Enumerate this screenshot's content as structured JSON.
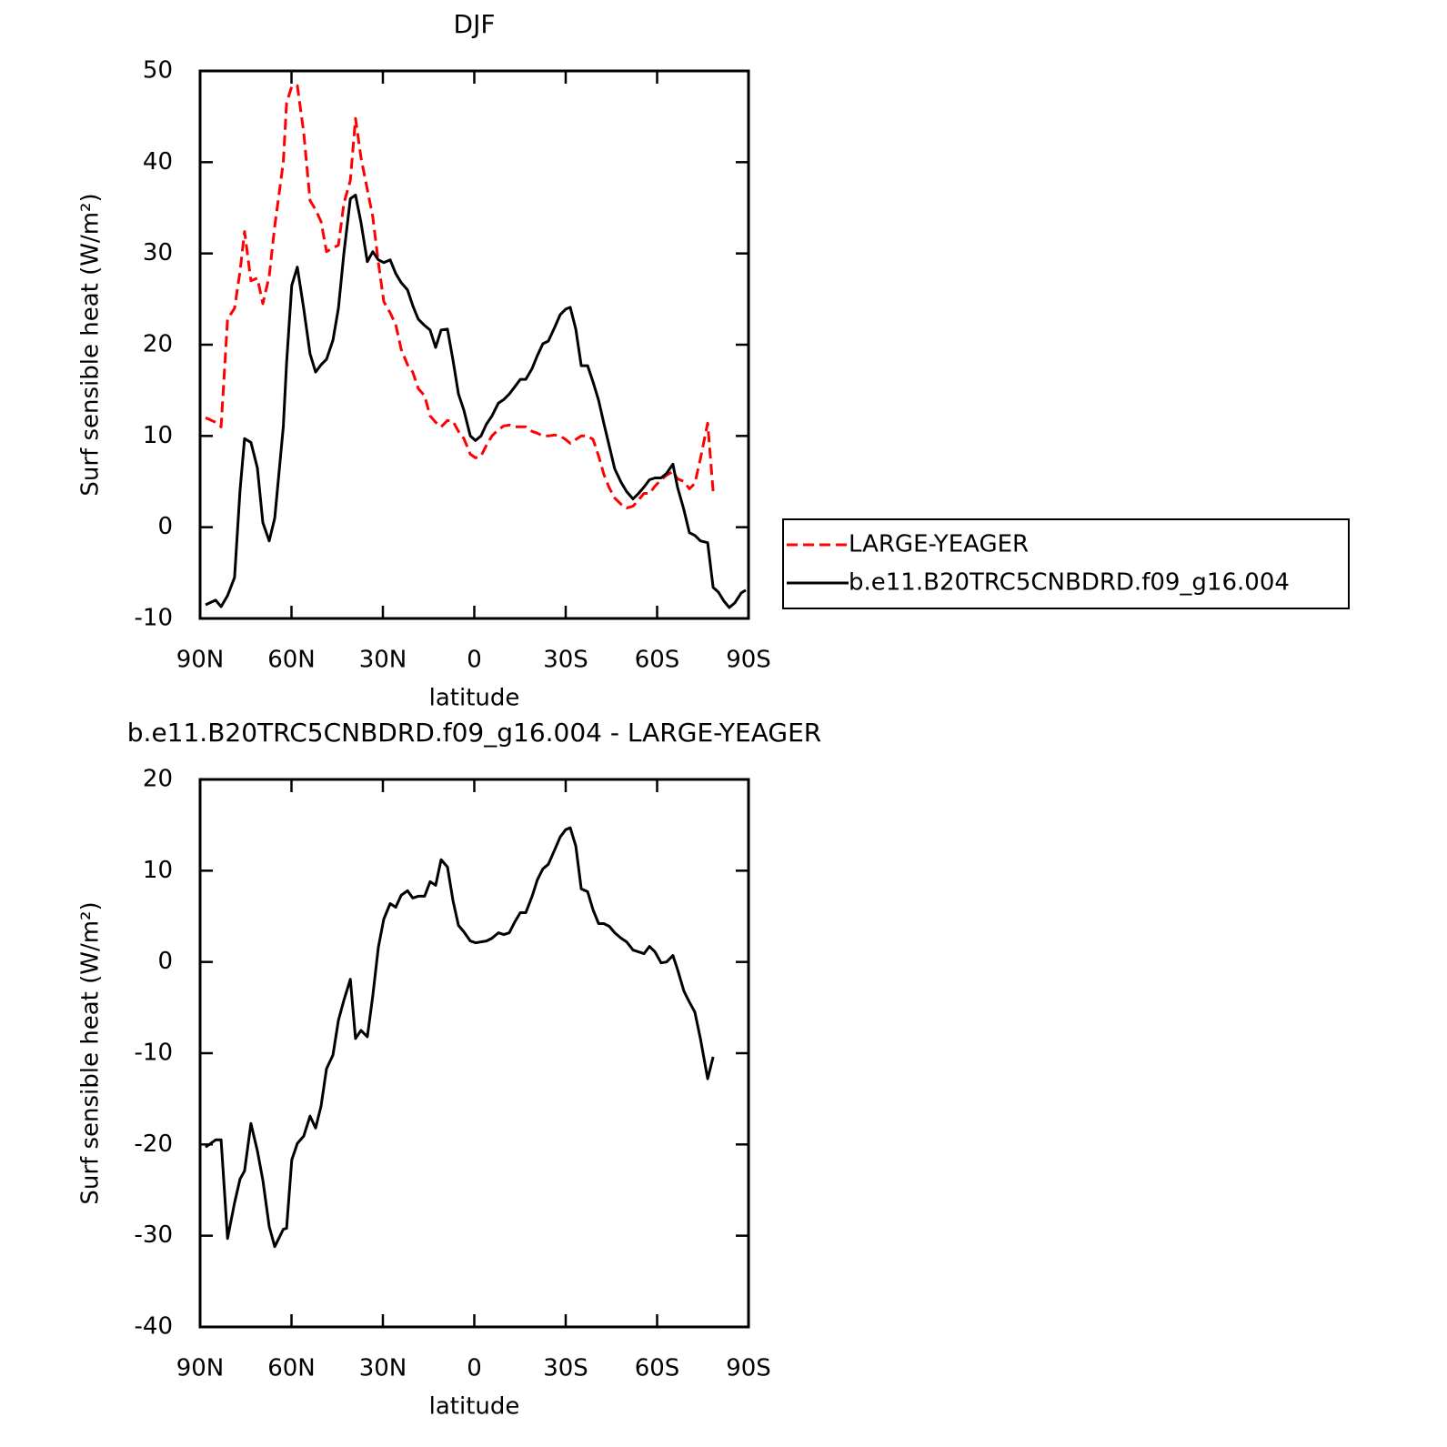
{
  "chart_data": [
    {
      "type": "line",
      "title": "DJF",
      "xlabel": "latitude",
      "ylabel": "Surf sensible heat (W/m²)",
      "x": [
        88.2,
        84.9,
        83.1,
        81.0,
        78.7,
        76.9,
        75.4,
        73.3,
        71.2,
        69.4,
        67.3,
        65.5,
        62.7,
        61.6,
        59.9,
        58.1,
        56.0,
        53.9,
        52.1,
        50.3,
        48.5,
        46.4,
        44.6,
        42.8,
        40.7,
        39.0,
        37.2,
        35.1,
        33.3,
        31.5,
        29.7,
        27.6,
        25.8,
        24.0,
        21.9,
        20.2,
        18.4,
        16.3,
        14.5,
        12.7,
        10.9,
        8.8,
        7.0,
        5.2,
        3.4,
        1.3,
        -0.4,
        -2.2,
        -4.0,
        -5.8,
        -7.9,
        -9.7,
        -11.5,
        -13.3,
        -15.1,
        -16.9,
        -19.0,
        -20.7,
        -22.5,
        -24.3,
        -26.4,
        -28.2,
        -30.0,
        -31.5,
        -33.3,
        -35.1,
        -37.2,
        -39.0,
        -40.8,
        -42.5,
        -44.3,
        -46.1,
        -48.2,
        -50.0,
        -52.1,
        -53.9,
        -55.7,
        -57.5,
        -59.3,
        -61.3,
        -63.1,
        -65.2,
        -66.7,
        -68.8,
        -70.6,
        -72.4,
        -74.2,
        -76.6,
        -78.4,
        -80.1,
        -81.9,
        -83.7,
        -85.5,
        -87.6,
        -89.1
      ],
      "series": [
        {
          "name": "LARGE-YEAGER",
          "color": "#ff0000",
          "linestyle": "dashed",
          "values": [
            12,
            11.5,
            11,
            22.8,
            24,
            28,
            32.4,
            27,
            27.3,
            24.5,
            27.5,
            33,
            40,
            46.5,
            48.3,
            48.4,
            43.3,
            35.8,
            34.8,
            33.5,
            30.2,
            30.6,
            30.9,
            35.5,
            38,
            44.8,
            40.5,
            37,
            34,
            29,
            24.7,
            23.5,
            22.2,
            19.5,
            17.8,
            17,
            15.2,
            14.4,
            12.2,
            11.5,
            11,
            11.7,
            11.6,
            10.5,
            9.7,
            8,
            7.6,
            7.8,
            9,
            10,
            10.7,
            11.1,
            11.2,
            11,
            11,
            11,
            10.5,
            10.3,
            10,
            10,
            10.1,
            10,
            9.6,
            9.2,
            9.6,
            10,
            10,
            9.6,
            7.8,
            5.8,
            4.3,
            3.2,
            2.5,
            2.1,
            2.3,
            3,
            3.7,
            3.7,
            4.5,
            5.2,
            5.7,
            6.1,
            5.3,
            5,
            4.2,
            4.8,
            7.5,
            11.4,
            3.9,
            null,
            null,
            null,
            null,
            null,
            null
          ]
        },
        {
          "name": "b.e11.B20TRC5CNBDRD.f09_g16.004",
          "color": "#000000",
          "linestyle": "solid",
          "values": [
            -8.5,
            -8,
            -8.7,
            -7.5,
            -5.5,
            4,
            9.7,
            9.3,
            6.5,
            0.5,
            -1.5,
            1,
            11,
            18,
            26.5,
            28.5,
            24,
            19,
            17,
            17.8,
            18.4,
            20.5,
            24,
            30,
            36,
            36.4,
            33.4,
            29.1,
            30.2,
            29.3,
            29,
            29.3,
            27.8,
            26.8,
            26,
            24.3,
            22.8,
            22.1,
            21.6,
            19.7,
            21.6,
            21.7,
            18.3,
            14.6,
            12.8,
            10,
            9.5,
            10,
            11.3,
            12.2,
            13.6,
            14,
            14.6,
            15.4,
            16.2,
            16.2,
            17.4,
            18.8,
            20.1,
            20.4,
            21.9,
            23.3,
            23.9,
            24.1,
            21.7,
            17.7,
            17.7,
            15.9,
            13.9,
            11.4,
            8.9,
            6.4,
            4.9,
            3.9,
            3.1,
            3.7,
            4.4,
            5.2,
            5.4,
            5.4,
            5.9,
            6.9,
            4.4,
            1.9,
            -0.6,
            -0.9,
            -1.5,
            -1.7,
            -6.6,
            -7.1,
            -8.1,
            -8.8,
            -8.3,
            -7.2,
            -6.9
          ]
        }
      ],
      "xlim": [
        90,
        -90
      ],
      "xticks": [
        {
          "value": 90,
          "label": "90N"
        },
        {
          "value": 60,
          "label": "60N"
        },
        {
          "value": 30,
          "label": "30N"
        },
        0,
        {
          "value": -30,
          "label": "30S"
        },
        {
          "value": -60,
          "label": "60S"
        },
        {
          "value": -90,
          "label": "90S"
        }
      ],
      "ylim": [
        -10,
        50
      ],
      "yticks": [
        -10,
        0,
        10,
        20,
        30,
        40,
        50
      ],
      "legend": "right"
    },
    {
      "type": "line",
      "title": "b.e11.B20TRC5CNBDRD.f09_g16.004 - LARGE-YEAGER",
      "xlabel": "latitude",
      "ylabel": "Surf sensible heat (W/m²)",
      "x": [
        88.2,
        84.9,
        83.1,
        81.0,
        78.7,
        76.9,
        75.4,
        73.3,
        71.2,
        69.4,
        67.3,
        65.5,
        62.7,
        61.6,
        59.9,
        58.1,
        56.0,
        53.9,
        52.1,
        50.3,
        48.5,
        46.4,
        44.6,
        42.8,
        40.7,
        39.0,
        37.2,
        35.1,
        33.3,
        31.5,
        29.7,
        27.6,
        25.8,
        24.0,
        21.9,
        20.2,
        18.4,
        16.3,
        14.5,
        12.7,
        10.9,
        8.8,
        7.0,
        5.2,
        3.4,
        1.3,
        -0.4,
        -2.2,
        -4.0,
        -5.8,
        -7.9,
        -9.7,
        -11.5,
        -13.3,
        -15.1,
        -16.9,
        -19.0,
        -20.7,
        -22.5,
        -24.3,
        -26.4,
        -28.2,
        -30.0,
        -31.5,
        -33.3,
        -35.1,
        -37.2,
        -39.0,
        -40.8,
        -42.5,
        -44.3,
        -46.1,
        -48.2,
        -50.0,
        -52.1,
        -53.9,
        -55.7,
        -57.5,
        -59.3,
        -61.3,
        -63.1,
        -65.2,
        -66.7,
        -68.8,
        -70.6,
        -72.4,
        -74.2,
        -76.6,
        -78.4,
        -80.1,
        -81.9,
        -83.7,
        -85.5,
        -87.6,
        -89.1
      ],
      "series": [
        {
          "color": "#000000",
          "linestyle": "solid",
          "values": [
            -20.3,
            -19.5,
            -19.5,
            -30.3,
            -26.4,
            -23.8,
            -22.9,
            -17.7,
            -20.7,
            -23.9,
            -29,
            -31.2,
            -29.3,
            -29.2,
            -21.7,
            -19.9,
            -19.1,
            -16.9,
            -18.2,
            -15.8,
            -11.7,
            -10.2,
            -6.4,
            -4.2,
            -1.9,
            -8.4,
            -7.5,
            -8.2,
            -3.7,
            1.6,
            4.7,
            6.4,
            6,
            7.3,
            7.8,
            7,
            7.2,
            7.2,
            8.8,
            8.4,
            11.2,
            10.4,
            6.7,
            4,
            3.3,
            2.3,
            2.1,
            2.2,
            2.3,
            2.6,
            3.2,
            3,
            3.2,
            4.4,
            5.4,
            5.4,
            7.2,
            9,
            10.2,
            10.7,
            12.3,
            13.7,
            14.5,
            14.7,
            12.7,
            8,
            7.7,
            5.7,
            4.2,
            4.2,
            3.9,
            3.2,
            2.6,
            2.2,
            1.3,
            1.1,
            0.9,
            1.7,
            1.1,
            -0.1,
            0,
            0.7,
            -0.8,
            -3.2,
            -4.4,
            -5.5,
            -8.4,
            -12.8,
            -10.4,
            null,
            null,
            null,
            null,
            null,
            null
          ]
        }
      ],
      "xlim": [
        90,
        -90
      ],
      "xticks": [
        {
          "value": 90,
          "label": "90N"
        },
        {
          "value": 60,
          "label": "60N"
        },
        {
          "value": 30,
          "label": "30N"
        },
        0,
        {
          "value": -30,
          "label": "30S"
        },
        {
          "value": -60,
          "label": "60S"
        },
        {
          "value": -90,
          "label": "90S"
        }
      ],
      "ylim": [
        -40,
        20
      ],
      "yticks": [
        -40,
        -30,
        -20,
        -10,
        0,
        10,
        20
      ]
    }
  ]
}
